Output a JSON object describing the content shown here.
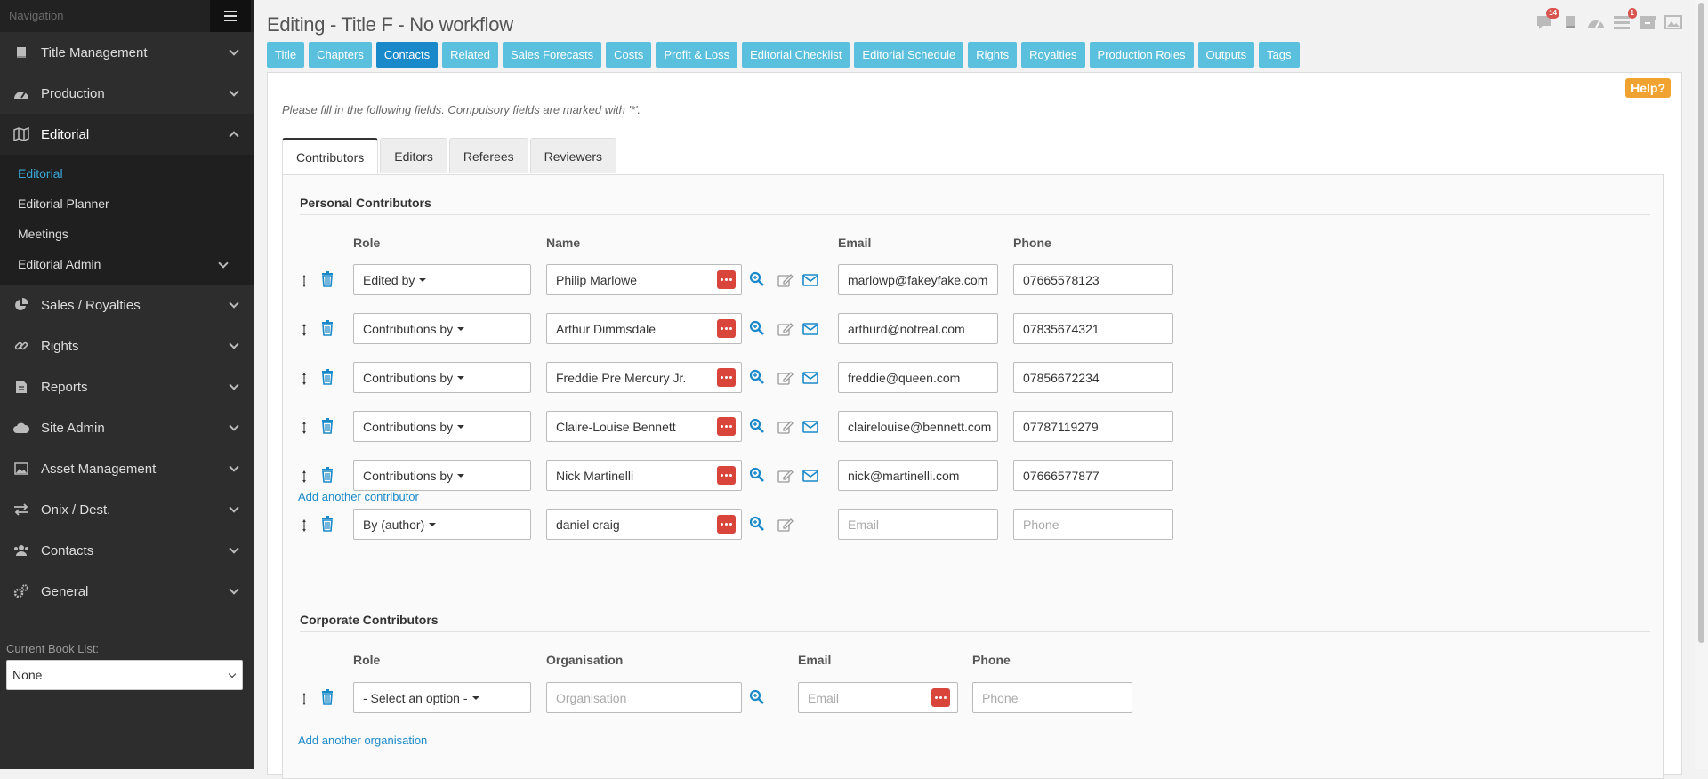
{
  "sidebar": {
    "nav_title": "Navigation",
    "items": [
      {
        "label": "Title Management",
        "icon": "book-icon"
      },
      {
        "label": "Production",
        "icon": "dashboard-icon"
      },
      {
        "label": "Editorial",
        "icon": "map-icon"
      },
      {
        "label": "Sales / Royalties",
        "icon": "pie-chart-icon"
      },
      {
        "label": "Rights",
        "icon": "link-icon"
      },
      {
        "label": "Reports",
        "icon": "file-icon"
      },
      {
        "label": "Site Admin",
        "icon": "cloud-icon"
      },
      {
        "label": "Asset Management",
        "icon": "image-icon"
      },
      {
        "label": "Onix / Dest.",
        "icon": "exchange-icon"
      },
      {
        "label": "Contacts",
        "icon": "users-icon"
      },
      {
        "label": "General",
        "icon": "cogs-icon"
      }
    ],
    "editorial_sub": [
      {
        "label": "Editorial"
      },
      {
        "label": "Editorial Planner"
      },
      {
        "label": "Meetings"
      },
      {
        "label": "Editorial Admin"
      }
    ],
    "booklist_label": "Current Book List:",
    "booklist_value": "None"
  },
  "header": {
    "title": "Editing - Title F - No workflow",
    "badges": {
      "chat": "14",
      "tasks": "1"
    },
    "icons": [
      "chat-icon",
      "book-icon",
      "dashboard-icon",
      "tasks-icon",
      "archive-icon",
      "image-icon"
    ]
  },
  "top_tabs": [
    "Title",
    "Chapters",
    "Contacts",
    "Related",
    "Sales Forecasts",
    "Costs",
    "Profit & Loss",
    "Editorial Checklist",
    "Editorial Schedule",
    "Rights",
    "Royalties",
    "Production Roles",
    "Outputs",
    "Tags"
  ],
  "active_top_tab": "Contacts",
  "help": "Help?",
  "instructions": "Please fill in the following fields. Compulsory fields are marked with '*'.",
  "sub_tabs": [
    "Contributors",
    "Editors",
    "Referees",
    "Reviewers"
  ],
  "personal": {
    "title": "Personal Contributors",
    "headers": {
      "role": "Role",
      "name": "Name",
      "email": "Email",
      "phone": "Phone"
    },
    "rows": [
      {
        "role": "Edited by",
        "name": "Philip Marlowe",
        "email": "marlowp@fakeyfake.com",
        "phone": "07665578123"
      },
      {
        "role": "Contributions by",
        "name": "Arthur Dimmsdale",
        "email": "arthurd@notreal.com",
        "phone": "07835674321"
      },
      {
        "role": "Contributions by",
        "name": "Freddie Pre Mercury Jr.",
        "email": "freddie@queen.com",
        "phone": "07856672234"
      },
      {
        "role": "Contributions by",
        "name": "Claire-Louise Bennett",
        "email": "clairelouise@bennett.com",
        "phone": "07787119279"
      },
      {
        "role": "Contributions by",
        "name": "Nick Martinelli",
        "email": "nick@martinelli.com",
        "phone": "07666577877"
      },
      {
        "role": "By (author)",
        "name": "daniel craig",
        "email": "",
        "phone": ""
      }
    ],
    "email_placeholder": "Email",
    "phone_placeholder": "Phone",
    "add_label": "Add another contributor"
  },
  "corporate": {
    "title": "Corporate Contributors",
    "headers": {
      "role": "Role",
      "org": "Organisation",
      "email": "Email",
      "phone": "Phone"
    },
    "row": {
      "role": "- Select an option -",
      "org_placeholder": "Organisation",
      "email_placeholder": "Email",
      "phone_placeholder": "Phone"
    },
    "add_label": "Add another organisation"
  },
  "colors": {
    "accent": "#1a89c9",
    "tab": "#5bc0de",
    "danger": "#d9453b",
    "help": "#f0a330"
  }
}
